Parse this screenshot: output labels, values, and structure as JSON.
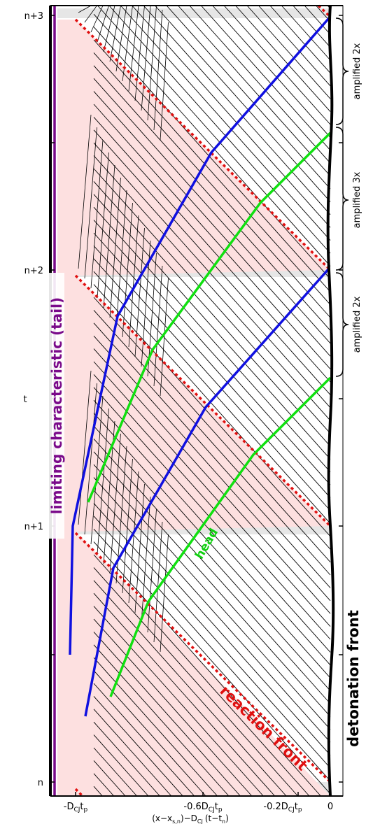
{
  "axes": {
    "x_title": "(x−x",
    "x_title_sub1": "s,n",
    "x_title_mid": ")−D",
    "x_title_sub2": "CJ",
    "x_title_end": "(t−t",
    "x_title_sub3": "n",
    "x_title_close": ")",
    "y_title": "t",
    "y_ticks": [
      "n",
      "n+1",
      "n+2",
      "n+3"
    ],
    "x_ticks": [
      {
        "main": "-D",
        "sub": "CJ",
        "mid": "t",
        "sub2": "p"
      },
      {
        "main": "-0.6D",
        "sub": "CJ",
        "mid": "t",
        "sub2": "p"
      },
      {
        "main": "-0.2D",
        "sub": "CJ",
        "mid": "t",
        "sub2": "p"
      },
      {
        "main": "0",
        "sub": "",
        "mid": "",
        "sub2": ""
      }
    ]
  },
  "labels": {
    "limiting": "limiting characteristic (tail)",
    "head": "head",
    "reaction_front": "reaction front",
    "detonation_front": "detonation front"
  },
  "brackets": [
    {
      "label": "amplified 2x"
    },
    {
      "label": "amplified 3x"
    },
    {
      "label": "amplified 2x"
    }
  ],
  "colors": {
    "tail": "#7a0a8a",
    "blue": "#1010e0",
    "green": "#10e010",
    "reaction": "#e01010",
    "shade": "#fde0e0",
    "band": "#e8e8e8"
  }
}
